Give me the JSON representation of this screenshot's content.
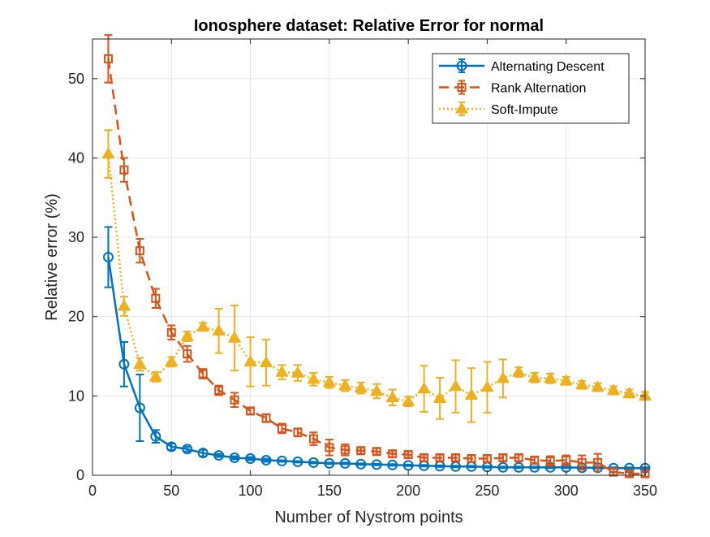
{
  "chart_data": {
    "type": "line",
    "title": "Ionosphere dataset: Relative Error for normal",
    "xlabel": "Number of Nystrom points",
    "ylabel": "Relative error (%)",
    "xlim": [
      0,
      350
    ],
    "ylim": [
      0,
      55
    ],
    "xticks": [
      0,
      50,
      100,
      150,
      200,
      250,
      300,
      350
    ],
    "yticks": [
      0,
      10,
      20,
      30,
      40,
      50
    ],
    "grid": true,
    "legend_position": "top-right",
    "x": [
      10,
      20,
      30,
      40,
      50,
      60,
      70,
      80,
      90,
      100,
      110,
      120,
      130,
      140,
      150,
      160,
      170,
      180,
      190,
      200,
      210,
      220,
      230,
      240,
      250,
      260,
      270,
      280,
      290,
      300,
      310,
      320,
      330,
      340,
      350
    ],
    "series": [
      {
        "name": "Alternating Descent",
        "color": "#0072BD",
        "line_style": "solid",
        "marker": "circle",
        "values": [
          27.5,
          14.0,
          8.5,
          4.9,
          3.6,
          3.3,
          2.8,
          2.5,
          2.2,
          2.1,
          1.9,
          1.8,
          1.7,
          1.6,
          1.5,
          1.5,
          1.4,
          1.35,
          1.3,
          1.25,
          1.2,
          1.15,
          1.1,
          1.1,
          1.05,
          1.0,
          1.0,
          1.0,
          1.0,
          1.0,
          0.95,
          0.95,
          0.9,
          0.9,
          0.9
        ],
        "errors": [
          3.8,
          2.8,
          4.2,
          0.8,
          0.4,
          0.3,
          0.4,
          0.2,
          0.2,
          0.2,
          0.2,
          0.1,
          0.1,
          0.1,
          0.1,
          0.1,
          0.1,
          0.1,
          0.1,
          0.1,
          0.1,
          0.1,
          0.1,
          0.1,
          0.1,
          0.1,
          0.1,
          0.1,
          0.1,
          0.1,
          0.1,
          0.1,
          0.1,
          0.1,
          0.1
        ]
      },
      {
        "name": "Rank Alternation",
        "color": "#D95319",
        "line_style": "dashed",
        "marker": "square",
        "values": [
          52.5,
          38.5,
          28.3,
          22.3,
          18.0,
          15.3,
          12.8,
          10.7,
          9.5,
          8.1,
          7.2,
          5.9,
          5.4,
          4.6,
          3.5,
          3.2,
          3.1,
          3.0,
          2.7,
          2.6,
          2.2,
          2.2,
          2.2,
          2.1,
          2.1,
          2.2,
          2.2,
          1.9,
          1.8,
          1.9,
          1.6,
          1.6,
          0.4,
          0.2,
          0.2
        ],
        "errors": [
          3.0,
          1.5,
          1.5,
          1.2,
          0.9,
          1.0,
          0.6,
          0.6,
          0.9,
          0.4,
          0.5,
          0.6,
          0.5,
          0.8,
          1.0,
          0.7,
          0.4,
          0.4,
          0.4,
          0.4,
          0.4,
          0.4,
          0.4,
          0.4,
          0.4,
          0.4,
          0.4,
          0.4,
          0.6,
          0.6,
          0.9,
          1.1,
          0.4,
          0.4,
          0.4
        ]
      },
      {
        "name": "Soft-Impute",
        "color": "#EDB120",
        "line_style": "dotted",
        "marker": "triangle",
        "values": [
          40.5,
          21.3,
          14.0,
          12.4,
          14.3,
          17.5,
          18.7,
          18.2,
          17.3,
          14.3,
          14.2,
          13.0,
          12.9,
          12.1,
          11.7,
          11.3,
          11.0,
          10.6,
          9.8,
          9.3,
          10.9,
          9.7,
          11.2,
          10.1,
          11.1,
          12.2,
          13.0,
          12.3,
          12.2,
          11.9,
          11.4,
          11.1,
          10.7,
          10.3,
          10.0
        ],
        "errors": [
          3.0,
          1.2,
          0.8,
          0.6,
          0.6,
          0.6,
          0.5,
          2.8,
          4.1,
          3.1,
          2.9,
          0.9,
          1.0,
          0.8,
          0.7,
          0.7,
          0.7,
          0.9,
          1.0,
          0.6,
          2.9,
          2.6,
          3.3,
          3.4,
          3.2,
          2.4,
          0.6,
          0.6,
          0.6,
          0.5,
          0.5,
          0.5,
          0.5,
          0.5,
          0.5
        ]
      }
    ]
  }
}
